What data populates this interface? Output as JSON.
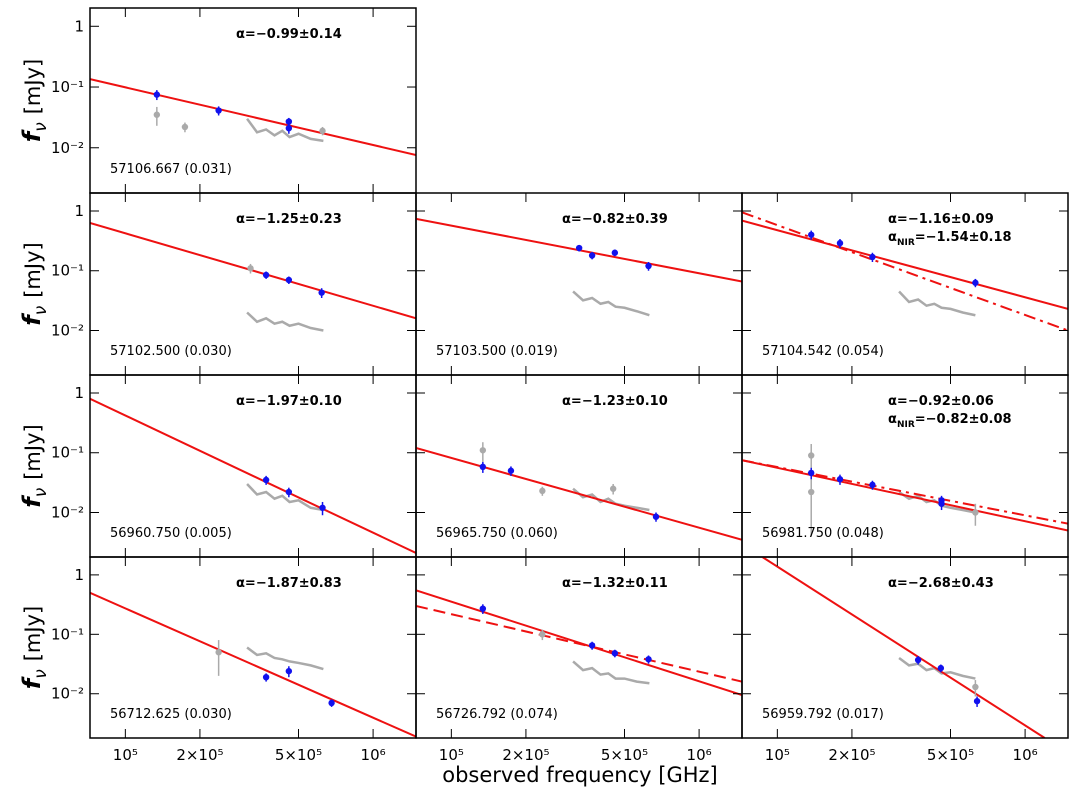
{
  "chart_data": {
    "type": "panel-grid",
    "xlabel": "observed frequency [GHz]",
    "ylabel": {
      "symbol": "f",
      "sub": "ν",
      "unit": "[mJy]"
    },
    "log_x": true,
    "log_y": true,
    "xlim": [
      72000,
      1490000
    ],
    "ylim": [
      0.0018,
      2
    ],
    "xticks": [
      {
        "value": 100000,
        "label": "10⁵"
      },
      {
        "value": 200000,
        "label": "2×10⁵"
      },
      {
        "value": 500000,
        "label": "5×10⁵"
      },
      {
        "value": 1000000,
        "label": "10⁶"
      }
    ],
    "yticks": [
      {
        "value": 0.01,
        "label": "10⁻²"
      },
      {
        "value": 0.1,
        "label": "10⁻¹"
      },
      1
    ],
    "panels": [
      {
        "type": "sed",
        "label": "57106.667 (0.031)",
        "alpha": "α=−0.99±0.14",
        "fit": {
          "x": [
            72000,
            1490000
          ],
          "y": [
            0.135,
            0.0076
          ],
          "color": "#ee1111",
          "style": "solid"
        },
        "spectrum": {
          "x": [
            310000,
            340000,
            370000,
            400000,
            430000,
            460000,
            500000,
            560000,
            630000
          ],
          "y": [
            0.03,
            0.018,
            0.02,
            0.016,
            0.019,
            0.015,
            0.017,
            0.014,
            0.013
          ],
          "color": "#aaaaaa"
        },
        "gray_points": {
          "x": [
            134000,
            174000,
            625000
          ],
          "y": [
            0.035,
            0.022,
            0.019
          ],
          "err": [
            0.012,
            0.004,
            0.003
          ],
          "color": "#aaaaaa"
        },
        "points": {
          "x": [
            134000,
            238000,
            457000,
            457000
          ],
          "y": [
            0.075,
            0.041,
            0.027,
            0.021
          ],
          "err": [
            0.014,
            0.007,
            0.004,
            0.004
          ],
          "color": "#1111ee"
        }
      },
      {
        "type": "sed",
        "label": "57102.500 (0.030)",
        "alpha": "α=−1.25±0.23",
        "fit": {
          "x": [
            72000,
            1490000
          ],
          "y": [
            0.63,
            0.016
          ],
          "color": "#ee1111",
          "style": "solid"
        },
        "spectrum": {
          "x": [
            310000,
            340000,
            370000,
            400000,
            430000,
            460000,
            500000,
            560000,
            630000
          ],
          "y": [
            0.02,
            0.014,
            0.016,
            0.013,
            0.014,
            0.012,
            0.013,
            0.011,
            0.01
          ],
          "color": "#aaaaaa"
        },
        "gray_points": {
          "x": [
            320000
          ],
          "y": [
            0.11
          ],
          "err": [
            0.02
          ],
          "color": "#aaaaaa"
        },
        "points": {
          "x": [
            370000,
            457000,
            620000
          ],
          "y": [
            0.085,
            0.07,
            0.043
          ],
          "err": [
            0.012,
            0.01,
            0.008
          ],
          "color": "#1111ee"
        }
      },
      {
        "type": "sed",
        "label": "57103.500 (0.019)",
        "alpha": "α=−0.82±0.39",
        "fit": {
          "x": [
            72000,
            1490000
          ],
          "y": [
            0.74,
            0.066
          ],
          "color": "#ee1111",
          "style": "solid"
        },
        "spectrum": {
          "x": [
            310000,
            340000,
            370000,
            400000,
            430000,
            460000,
            500000,
            560000,
            630000
          ],
          "y": [
            0.045,
            0.032,
            0.035,
            0.028,
            0.03,
            0.025,
            0.024,
            0.021,
            0.018
          ],
          "color": "#aaaaaa"
        },
        "points": {
          "x": [
            328000,
            370000,
            457000,
            625000
          ],
          "y": [
            0.24,
            0.18,
            0.2,
            0.12
          ],
          "err": [
            0.03,
            0.025,
            0.025,
            0.02
          ],
          "color": "#1111ee"
        }
      },
      {
        "type": "sed",
        "label": "57104.542 (0.054)",
        "alpha": "α=−1.16±0.09",
        "alpha_nir": {
          "symbol": "α",
          "sub": "NIR",
          "text": "=−1.54±0.18"
        },
        "fit": {
          "x": [
            72000,
            1490000
          ],
          "y": [
            0.69,
            0.023
          ],
          "color": "#ee1111",
          "style": "solid"
        },
        "fit2": {
          "x": [
            72000,
            1490000
          ],
          "y": [
            0.95,
            0.01
          ],
          "color": "#ee1111",
          "style": "dashdot"
        },
        "spectrum": {
          "x": [
            310000,
            340000,
            370000,
            400000,
            430000,
            460000,
            500000,
            560000,
            630000
          ],
          "y": [
            0.045,
            0.03,
            0.033,
            0.026,
            0.028,
            0.024,
            0.023,
            0.02,
            0.018
          ],
          "color": "#aaaaaa"
        },
        "points": {
          "x": [
            137000,
            179000,
            242000,
            630000
          ],
          "y": [
            0.4,
            0.29,
            0.17,
            0.063
          ],
          "err": [
            0.07,
            0.05,
            0.03,
            0.01
          ],
          "color": "#1111ee"
        }
      },
      {
        "type": "sed",
        "label": "56960.750 (0.005)",
        "alpha": "α=−1.97±0.10",
        "fit": {
          "x": [
            72000,
            1490000
          ],
          "y": [
            0.8,
            0.0021
          ],
          "color": "#ee1111",
          "style": "solid"
        },
        "spectrum": {
          "x": [
            310000,
            340000,
            370000,
            400000,
            430000,
            460000,
            500000,
            560000,
            630000
          ],
          "y": [
            0.03,
            0.02,
            0.022,
            0.017,
            0.019,
            0.015,
            0.016,
            0.012,
            0.011
          ],
          "color": "#aaaaaa"
        },
        "points": {
          "x": [
            370000,
            457000,
            625000
          ],
          "y": [
            0.035,
            0.022,
            0.012
          ],
          "err": [
            0.006,
            0.004,
            0.003
          ],
          "color": "#1111ee"
        }
      },
      {
        "type": "sed",
        "label": "56965.750 (0.060)",
        "alpha": "α=−1.23±0.10",
        "fit": {
          "x": [
            72000,
            1490000
          ],
          "y": [
            0.12,
            0.0035
          ],
          "color": "#ee1111",
          "style": "solid"
        },
        "spectrum": {
          "x": [
            310000,
            340000,
            370000,
            400000,
            430000,
            460000,
            500000,
            560000,
            630000
          ],
          "y": [
            0.025,
            0.018,
            0.02,
            0.015,
            0.017,
            0.014,
            0.013,
            0.012,
            0.011
          ],
          "color": "#aaaaaa"
        },
        "gray_points": {
          "x": [
            134000,
            233000,
            450000
          ],
          "y": [
            0.11,
            0.023,
            0.025
          ],
          "err": [
            0.04,
            0.004,
            0.005
          ],
          "color": "#aaaaaa"
        },
        "points": {
          "x": [
            134000,
            174000,
            670000
          ],
          "y": [
            0.058,
            0.05,
            0.0085
          ],
          "err": [
            0.012,
            0.009,
            0.0015
          ],
          "color": "#1111ee"
        }
      },
      {
        "type": "sed",
        "label": "56981.750 (0.048)",
        "alpha": "α=−0.92±0.06",
        "alpha_nir": {
          "symbol": "α",
          "sub": "NIR",
          "text": "=−0.82±0.08"
        },
        "fit": {
          "x": [
            72000,
            1490000
          ],
          "y": [
            0.075,
            0.005
          ],
          "color": "#ee1111",
          "style": "solid"
        },
        "fit2": {
          "x": [
            72000,
            1490000
          ],
          "y": [
            0.075,
            0.0065
          ],
          "color": "#ee1111",
          "style": "dashdot"
        },
        "spectrum": {
          "x": [
            310000,
            340000,
            370000,
            400000,
            430000,
            460000,
            500000,
            560000,
            630000
          ],
          "y": [
            0.022,
            0.017,
            0.019,
            0.015,
            0.016,
            0.013,
            0.012,
            0.011,
            0.01
          ],
          "color": "#aaaaaa"
        },
        "gray_points": {
          "x": [
            137000,
            137000,
            630000
          ],
          "y": [
            0.09,
            0.022,
            0.01
          ],
          "err": [
            0.05,
            0.018,
            0.004
          ],
          "color": "#aaaaaa"
        },
        "points": {
          "x": [
            137000,
            179000,
            242000,
            460000,
            460000
          ],
          "y": [
            0.046,
            0.036,
            0.029,
            0.016,
            0.014
          ],
          "err": [
            0.01,
            0.007,
            0.005,
            0.003,
            0.003
          ],
          "color": "#1111ee"
        }
      },
      {
        "type": "sed",
        "label": "56712.625 (0.030)",
        "alpha": "α=−1.87±0.83",
        "fit": {
          "x": [
            72000,
            1490000
          ],
          "y": [
            0.5,
            0.0019
          ],
          "color": "#ee1111",
          "style": "solid"
        },
        "spectrum": {
          "x": [
            310000,
            340000,
            370000,
            400000,
            430000,
            460000,
            500000,
            560000,
            630000
          ],
          "y": [
            0.06,
            0.045,
            0.048,
            0.04,
            0.038,
            0.035,
            0.033,
            0.03,
            0.026
          ],
          "color": "#aaaaaa"
        },
        "gray_points": {
          "x": [
            238000
          ],
          "y": [
            0.05
          ],
          "err": [
            0.03
          ],
          "color": "#aaaaaa"
        },
        "points": {
          "x": [
            370000,
            457000,
            680000
          ],
          "y": [
            0.019,
            0.024,
            0.007
          ],
          "err": [
            0.003,
            0.005,
            0.001
          ],
          "color": "#1111ee"
        }
      },
      {
        "type": "sed",
        "label": "56726.792 (0.074)",
        "alpha": "α=−1.32±0.11",
        "fit": {
          "x": [
            72000,
            1490000
          ],
          "y": [
            0.55,
            0.0095
          ],
          "color": "#ee1111",
          "style": "solid"
        },
        "fit2": {
          "x": [
            72000,
            1490000
          ],
          "y": [
            0.3,
            0.016
          ],
          "color": "#ee1111",
          "style": "dashed"
        },
        "spectrum": {
          "x": [
            310000,
            340000,
            370000,
            400000,
            430000,
            460000,
            500000,
            560000,
            630000
          ],
          "y": [
            0.035,
            0.025,
            0.027,
            0.021,
            0.022,
            0.018,
            0.018,
            0.016,
            0.015
          ],
          "color": "#aaaaaa"
        },
        "gray_points": {
          "x": [
            233000
          ],
          "y": [
            0.1
          ],
          "err": [
            0.02
          ],
          "color": "#aaaaaa"
        },
        "points": {
          "x": [
            134000,
            370000,
            457000,
            625000
          ],
          "y": [
            0.27,
            0.065,
            0.048,
            0.038
          ],
          "err": [
            0.05,
            0.01,
            0.007,
            0.006
          ],
          "color": "#1111ee"
        }
      },
      {
        "type": "sed",
        "label": "56959.792 (0.017)",
        "alpha": "α=−2.68±0.43",
        "fit": {
          "x": [
            87000,
            1200000
          ],
          "y": [
            2,
            0.0018
          ],
          "color": "#ee1111",
          "style": "solid"
        },
        "spectrum": {
          "x": [
            310000,
            340000,
            370000,
            400000,
            430000,
            460000,
            500000,
            560000,
            630000
          ],
          "y": [
            0.04,
            0.03,
            0.032,
            0.025,
            0.027,
            0.022,
            0.023,
            0.02,
            0.018
          ],
          "color": "#aaaaaa"
        },
        "gray_points": {
          "x": [
            630000
          ],
          "y": [
            0.013
          ],
          "err": [
            0.004
          ],
          "color": "#aaaaaa"
        },
        "points": {
          "x": [
            370000,
            457000,
            640000
          ],
          "y": [
            0.037,
            0.027,
            0.0075
          ],
          "err": [
            0.006,
            0.004,
            0.0015
          ],
          "color": "#1111ee"
        }
      }
    ]
  }
}
